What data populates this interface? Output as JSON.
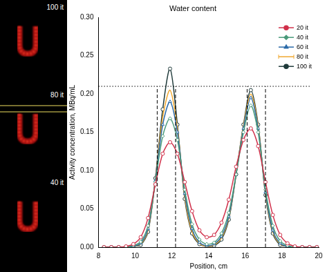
{
  "images": [
    {
      "label": "100 it"
    },
    {
      "label": "80 it"
    },
    {
      "label": "40 it"
    }
  ],
  "chart_data": {
    "type": "line",
    "title": "Water content",
    "x_label": "Position, cm",
    "y_label": "Activity concentration, MBq/mL",
    "x": [
      8.3,
      8.7,
      9.1,
      9.5,
      9.9,
      10.3,
      10.7,
      11.1,
      11.5,
      11.9,
      12.3,
      12.7,
      13.1,
      13.5,
      13.9,
      14.3,
      14.7,
      15.1,
      15.5,
      15.9,
      16.3,
      16.7,
      17.1,
      17.5,
      17.9,
      18.3,
      18.7,
      19.1,
      19.5,
      19.9
    ],
    "series": [
      {
        "name": "20 it",
        "color": "#d0304a",
        "marker": "circle",
        "values": [
          0,
          0,
          0,
          0.001,
          0.004,
          0.013,
          0.038,
          0.082,
          0.122,
          0.137,
          0.122,
          0.085,
          0.047,
          0.022,
          0.013,
          0.016,
          0.032,
          0.062,
          0.105,
          0.14,
          0.155,
          0.132,
          0.085,
          0.042,
          0.016,
          0.005,
          0.001,
          0,
          0,
          0
        ]
      },
      {
        "name": "40 it",
        "color": "#4a9a7a",
        "marker": "diamond",
        "values": [
          0,
          0,
          0,
          0,
          0.002,
          0.007,
          0.028,
          0.085,
          0.145,
          0.168,
          0.14,
          0.075,
          0.03,
          0.01,
          0.004,
          0.006,
          0.018,
          0.045,
          0.095,
          0.15,
          0.185,
          0.15,
          0.075,
          0.028,
          0.008,
          0.002,
          0,
          0,
          0,
          0
        ]
      },
      {
        "name": "60 it",
        "color": "#2a6aa8",
        "marker": "triangle",
        "values": [
          0,
          0,
          0,
          0,
          0.001,
          0.005,
          0.024,
          0.087,
          0.16,
          0.19,
          0.15,
          0.07,
          0.024,
          0.006,
          0.002,
          0.004,
          0.014,
          0.04,
          0.095,
          0.155,
          0.195,
          0.155,
          0.072,
          0.022,
          0.005,
          0.001,
          0,
          0,
          0,
          0
        ]
      },
      {
        "name": "80 it",
        "color": "#f0a830",
        "marker": "errorbar",
        "values": [
          0,
          0,
          0,
          0,
          0.001,
          0.004,
          0.022,
          0.088,
          0.17,
          0.205,
          0.155,
          0.066,
          0.02,
          0.005,
          0.001,
          0.003,
          0.012,
          0.038,
          0.095,
          0.158,
          0.2,
          0.158,
          0.07,
          0.02,
          0.004,
          0.001,
          0,
          0,
          0,
          0
        ]
      },
      {
        "name": "100 it",
        "color": "#1f3a3a",
        "marker": "circle",
        "values": [
          0,
          0,
          0,
          0,
          0.001,
          0.003,
          0.02,
          0.09,
          0.18,
          0.233,
          0.16,
          0.063,
          0.018,
          0.004,
          0.001,
          0.002,
          0.01,
          0.036,
          0.095,
          0.16,
          0.205,
          0.16,
          0.068,
          0.018,
          0.003,
          0.001,
          0,
          0,
          0,
          0
        ]
      }
    ],
    "xlim": [
      8,
      20
    ],
    "xticks": [
      8,
      10,
      12,
      14,
      16,
      18,
      20
    ],
    "ylim": [
      0,
      0.3
    ],
    "yticks": [
      {
        "value": 0,
        "label": "0.00"
      },
      {
        "value": 0.05,
        "label": "0.05"
      },
      {
        "value": 0.1,
        "label": "0.10"
      },
      {
        "value": 0.15,
        "label": "0.15"
      },
      {
        "value": 0.2,
        "label": "0.20"
      },
      {
        "value": 0.25,
        "label": "0.25"
      },
      {
        "value": 0.3,
        "label": "0.30"
      }
    ],
    "reference_lines": [
      {
        "orientation": "horizontal",
        "y": 0.21,
        "x": [
          8,
          19.6
        ],
        "line_style": "dotted"
      },
      {
        "orientation": "vertical",
        "x": 11.2,
        "y": [
          0,
          0.21
        ],
        "line_style": "dashed"
      },
      {
        "orientation": "vertical",
        "x": 12.2,
        "y": [
          0,
          0.21
        ],
        "line_style": "dashed"
      },
      {
        "orientation": "vertical",
        "x": 16.1,
        "y": [
          0,
          0.21
        ],
        "line_style": "dashed"
      },
      {
        "orientation": "vertical",
        "x": 17.1,
        "y": [
          0,
          0.21
        ],
        "line_style": "dashed"
      }
    ],
    "legend": "upper right",
    "grid": false
  }
}
